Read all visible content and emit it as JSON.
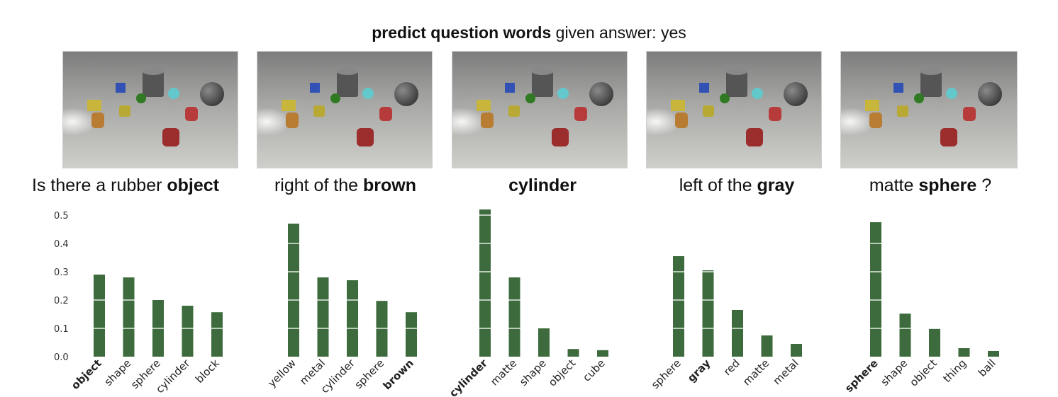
{
  "title": {
    "bold": "predict question words",
    "rest": " given answer: yes"
  },
  "question": [
    {
      "plain_before": "Is there a rubber ",
      "bold": "object",
      "plain_after": ""
    },
    {
      "plain_before": "right of the ",
      "bold": "brown",
      "plain_after": ""
    },
    {
      "plain_before": "",
      "bold": "cylinder",
      "plain_after": ""
    },
    {
      "plain_before": "left of the ",
      "bold": "gray",
      "plain_after": ""
    },
    {
      "plain_before": "matte ",
      "bold": "sphere",
      "plain_after": " ?"
    }
  ],
  "colors": {
    "bar": "#3d6b3d",
    "gridline": "#ffffff"
  },
  "chart_data": [
    {
      "type": "bar",
      "categories": [
        "object",
        "shape",
        "sphere",
        "cylinder",
        "block"
      ],
      "values": [
        0.29,
        0.28,
        0.2,
        0.18,
        0.157
      ],
      "highlight": "object",
      "ylim": [
        0,
        0.52
      ],
      "yticks": [
        "0.0",
        "0.1",
        "0.2",
        "0.3",
        "0.4",
        "0.5"
      ]
    },
    {
      "type": "bar",
      "categories": [
        "yellow",
        "metal",
        "cylinder",
        "sphere",
        "brown"
      ],
      "values": [
        0.47,
        0.28,
        0.27,
        0.197,
        0.157
      ],
      "highlight": "brown",
      "ylim": [
        0,
        0.52
      ]
    },
    {
      "type": "bar",
      "categories": [
        "cylinder",
        "matte",
        "shape",
        "object",
        "cube"
      ],
      "values": [
        0.52,
        0.28,
        0.1,
        0.027,
        0.023
      ],
      "highlight": "cylinder",
      "ylim": [
        0,
        0.52
      ]
    },
    {
      "type": "bar",
      "categories": [
        "sphere",
        "gray",
        "red",
        "matte",
        "metal"
      ],
      "values": [
        0.355,
        0.305,
        0.165,
        0.075,
        0.045
      ],
      "highlight": "gray",
      "ylim": [
        0,
        0.52
      ]
    },
    {
      "type": "bar",
      "categories": [
        "sphere",
        "shape",
        "object",
        "thing",
        "ball"
      ],
      "values": [
        0.475,
        0.152,
        0.098,
        0.03,
        0.02
      ],
      "highlight": "sphere",
      "ylim": [
        0,
        0.52
      ]
    }
  ]
}
